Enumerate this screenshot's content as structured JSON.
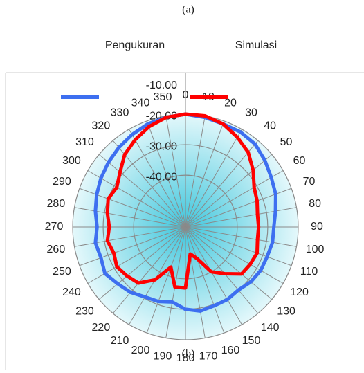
{
  "caption_top": "(a)",
  "caption_bottom": "(b)",
  "chart_data": {
    "type": "radar",
    "categories": [
      "0",
      "10",
      "20",
      "30",
      "40",
      "50",
      "60",
      "70",
      "80",
      "90",
      "100",
      "110",
      "120",
      "130",
      "140",
      "150",
      "160",
      "170",
      "180",
      "190",
      "200",
      "210",
      "220",
      "230",
      "240",
      "250",
      "260",
      "270",
      "280",
      "290",
      "300",
      "310",
      "320",
      "330",
      "340",
      "350"
    ],
    "series": [
      {
        "name": "Pengukuran",
        "color": "#3d6ff0",
        "values": [
          -20,
          -20.5,
          -21,
          -21,
          -21.5,
          -23,
          -24.5,
          -25.5,
          -27,
          -28,
          -28,
          -28.5,
          -28.5,
          -29,
          -30,
          -29.5,
          -29.5,
          -29,
          -30,
          -32,
          -31,
          -30.5,
          -29,
          -28,
          -26.5,
          -27.5,
          -27,
          -28,
          -27,
          -26,
          -25,
          -24,
          -23,
          -22,
          -21,
          -20.5
        ]
      },
      {
        "name": "Simulasi",
        "color": "#ff0000",
        "values": [
          -20,
          -20,
          -21,
          -23,
          -25,
          -28,
          -31,
          -32,
          -33,
          -33,
          -33,
          -32,
          -32.5,
          -33,
          -37,
          -40,
          -46,
          -48,
          -37,
          -37,
          -43,
          -37,
          -33,
          -32,
          -31,
          -32,
          -31,
          -32,
          -31,
          -30,
          -31,
          -29,
          -26,
          -24,
          -22,
          -20.5
        ]
      }
    ],
    "rlim": [
      -57,
      -10
    ],
    "rticks": [
      {
        "value": -10,
        "label": "-10.00"
      },
      {
        "value": -20,
        "label": "-20.00"
      },
      {
        "value": -30,
        "label": "-30.00"
      },
      {
        "value": -40,
        "label": "-40.00"
      }
    ],
    "grid": true,
    "legend": "top"
  }
}
